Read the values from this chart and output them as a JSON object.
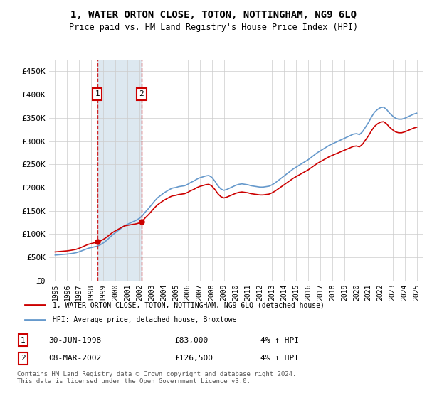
{
  "title": "1, WATER ORTON CLOSE, TOTON, NOTTINGHAM, NG9 6LQ",
  "subtitle": "Price paid vs. HM Land Registry's House Price Index (HPI)",
  "ylim": [
    0,
    475000
  ],
  "yticks": [
    0,
    50000,
    100000,
    150000,
    200000,
    250000,
    300000,
    350000,
    400000,
    450000
  ],
  "ytick_labels": [
    "£0",
    "£50K",
    "£100K",
    "£150K",
    "£200K",
    "£250K",
    "£300K",
    "£350K",
    "£400K",
    "£450K"
  ],
  "xlim_start": 1994.5,
  "xlim_end": 2025.5,
  "sale1_date": 1998.5,
  "sale1_price": 83000,
  "sale1_label": "30-JUN-1998",
  "sale1_amount": "£83,000",
  "sale1_hpi": "4% ↑ HPI",
  "sale2_date": 2002.17,
  "sale2_price": 126500,
  "sale2_label": "08-MAR-2002",
  "sale2_amount": "£126,500",
  "sale2_hpi": "4% ↑ HPI",
  "property_color": "#cc0000",
  "hpi_color": "#6699cc",
  "shade_color": "#dde8f0",
  "legend_property": "1, WATER ORTON CLOSE, TOTON, NOTTINGHAM, NG9 6LQ (detached house)",
  "legend_hpi": "HPI: Average price, detached house, Broxtowe",
  "footer": "Contains HM Land Registry data © Crown copyright and database right 2024.\nThis data is licensed under the Open Government Licence v3.0.",
  "background_color": "#ffffff"
}
